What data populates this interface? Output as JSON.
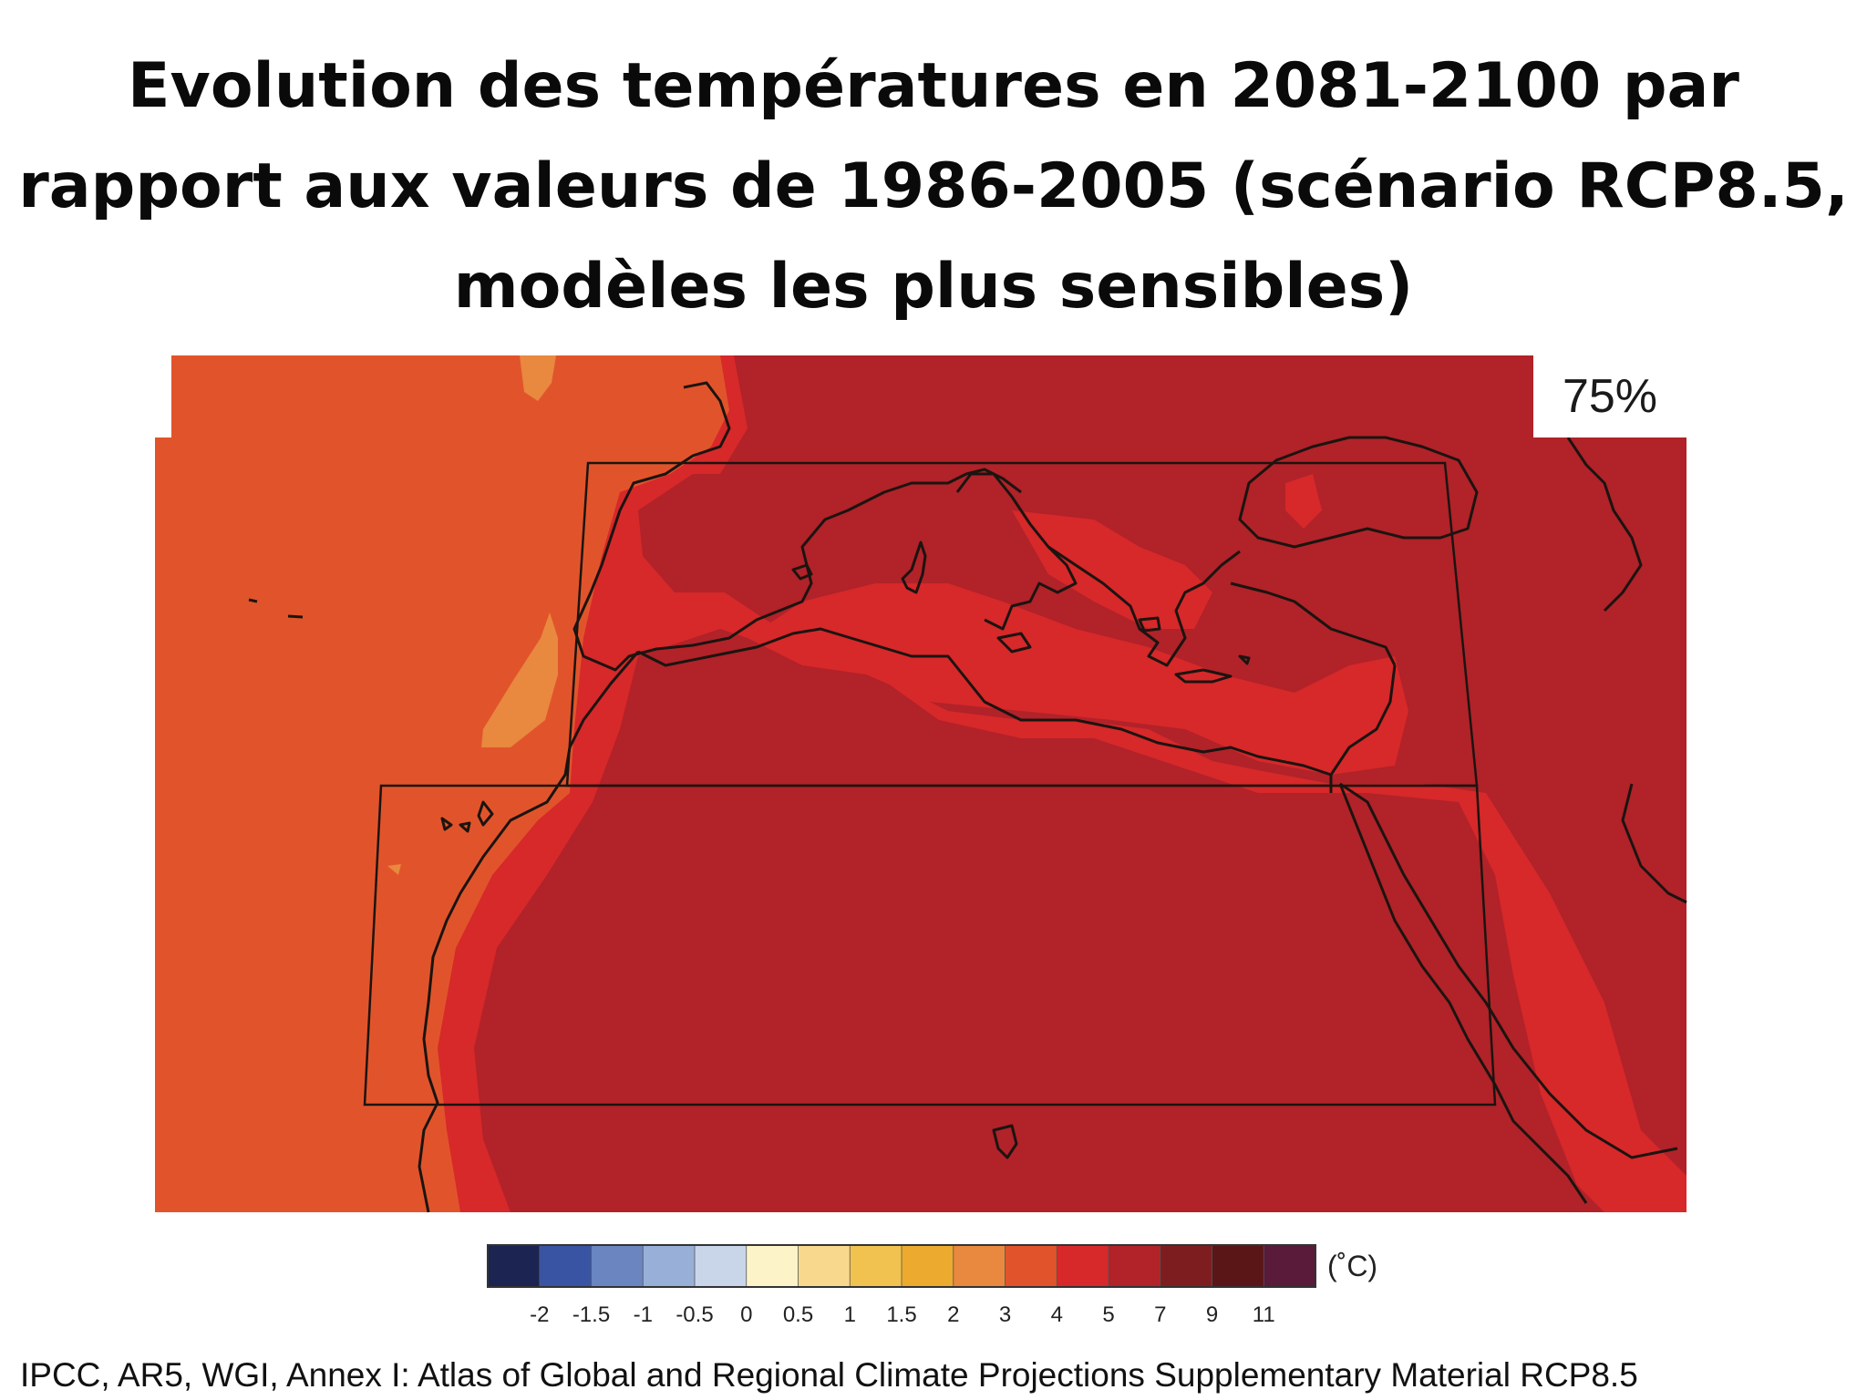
{
  "title_lines": [
    "Evolution des températures en 2081-2100 par",
    "rapport aux valeurs de 1986-2005 (scénario RCP8.5,",
    "modèles les plus sensibles)"
  ],
  "map": {
    "percentile_label": "75%",
    "region": "Europe méditerranéenne, Afrique du Nord et Sahara",
    "colors": {
      "class_3_to_4": "#e1542b",
      "class_2_to_3": "#e9883f",
      "class_4_to_5": "#d7282a",
      "class_5_to_7": "#b12229"
    }
  },
  "legend": {
    "unit": "(˚C)",
    "ticks": [
      "-2",
      "-1.5",
      "-1",
      "-0.5",
      "0",
      "0.5",
      "1",
      "1.5",
      "2",
      "3",
      "4",
      "5",
      "7",
      "9",
      "11"
    ],
    "colors": [
      "#1c2452",
      "#3a54a4",
      "#6a85c0",
      "#98b0d8",
      "#c9d6ea",
      "#fdf3c9",
      "#f8d88c",
      "#f1c24f",
      "#ecaa2f",
      "#e9883f",
      "#e1542b",
      "#d7282a",
      "#b12229",
      "#7e1d20",
      "#5a1517",
      "#5a1a3a"
    ]
  },
  "source": "IPCC, AR5, WGI, Annex I: Atlas of Global and Regional Climate Projections Supplementary Material RCP8.5"
}
